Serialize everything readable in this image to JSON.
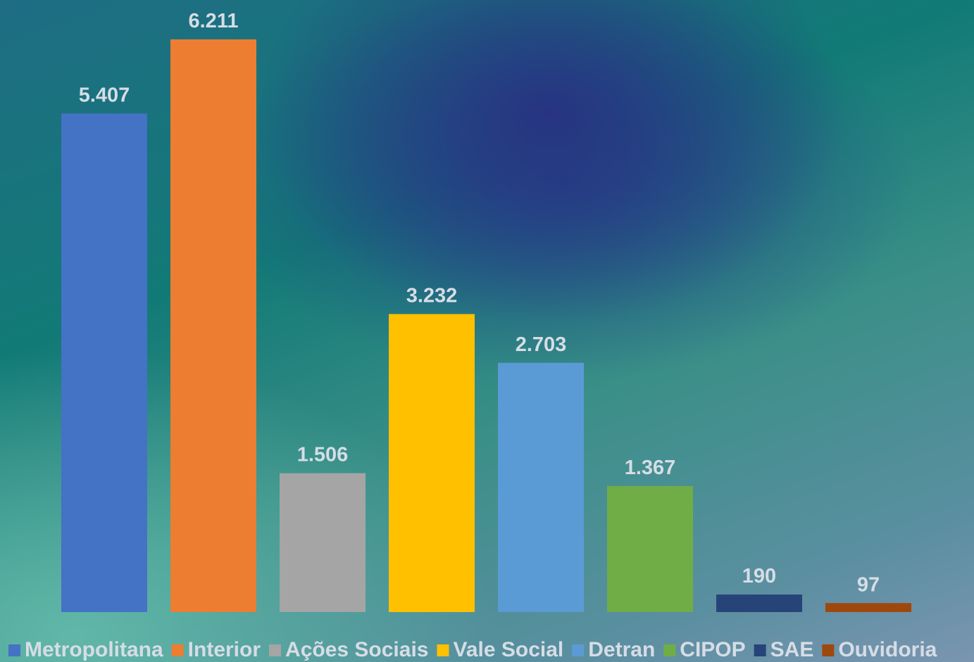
{
  "chart_data": {
    "type": "bar",
    "series": [
      {
        "name": "Metropolitana",
        "color": "#4472c4",
        "values": [
          5407
        ],
        "value_labels": [
          "5.407"
        ]
      },
      {
        "name": "Interior",
        "color": "#ed7d31",
        "values": [
          6211
        ],
        "value_labels": [
          "6.211"
        ]
      },
      {
        "name": "Ações Sociais",
        "color": "#a5a5a5",
        "values": [
          1506
        ],
        "value_labels": [
          "1.506"
        ]
      },
      {
        "name": "Vale Social",
        "color": "#ffc000",
        "values": [
          3232
        ],
        "value_labels": [
          "3.232"
        ]
      },
      {
        "name": "Detran",
        "color": "#5b9bd5",
        "values": [
          2703
        ],
        "value_labels": [
          "2.703"
        ]
      },
      {
        "name": "CIPOP",
        "color": "#70ad47",
        "values": [
          1367
        ],
        "value_labels": [
          "1.367"
        ]
      },
      {
        "name": "SAE",
        "color": "#264478",
        "values": [
          190
        ],
        "value_labels": [
          "190"
        ]
      },
      {
        "name": "Ouvidoria",
        "color": "#9e480e",
        "values": [
          97
        ],
        "value_labels": [
          "97"
        ]
      }
    ],
    "legend": "bottom"
  }
}
